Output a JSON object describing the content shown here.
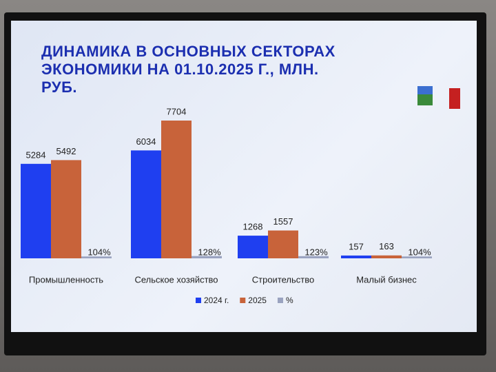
{
  "chart_data": {
    "type": "bar",
    "title": "ДИНАМИКА В ОСНОВНЫХ СЕКТОРАХ ЭКОНОМИКИ НА 01.10.2025 Г., МЛН. РУБ.",
    "categories": [
      "Промышленность",
      "Сельское хозяйство",
      "Строительство",
      "Малый бизнес"
    ],
    "series": [
      {
        "name": "2024 г.",
        "color": "#1f3ff0",
        "values": [
          5284,
          6034,
          1268,
          157
        ]
      },
      {
        "name": "2025",
        "color": "#c8633a",
        "values": [
          5492,
          7704,
          1557,
          163
        ]
      },
      {
        "name": "%",
        "color": "#9aa3c0",
        "values": [
          104,
          128,
          123,
          104
        ],
        "value_labels": [
          "104%",
          "128%",
          "123%",
          "104%"
        ]
      }
    ]
  }
}
